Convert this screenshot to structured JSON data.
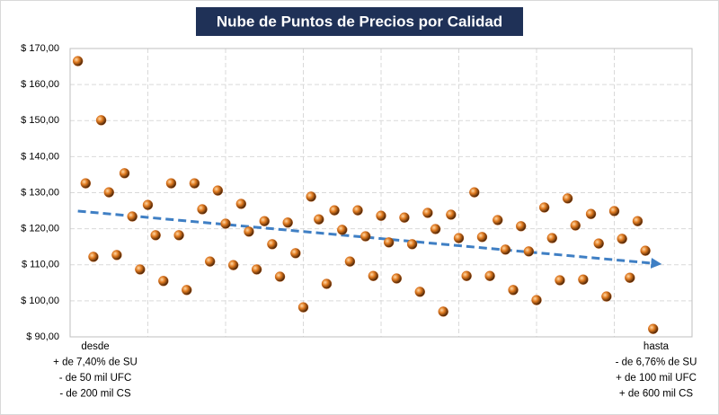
{
  "chart_data": {
    "type": "scatter",
    "title": "Nube de Puntos de Precios por Calidad",
    "x": [
      1,
      2,
      3,
      4,
      5,
      6,
      7,
      8,
      9,
      10,
      11,
      12,
      13,
      14,
      15,
      16,
      17,
      18,
      19,
      20,
      21,
      22,
      23,
      24,
      25,
      26,
      27,
      28,
      29,
      30,
      31,
      32,
      33,
      34,
      35,
      36,
      37,
      38,
      39,
      40,
      41,
      42,
      43,
      44,
      45,
      46,
      47,
      48,
      49,
      50,
      51,
      52,
      53,
      54,
      55,
      56,
      57,
      58,
      59,
      60,
      61,
      62,
      63,
      64,
      65,
      66,
      67,
      68,
      69,
      70,
      71,
      72,
      73,
      74,
      75
    ],
    "values": [
      166.5,
      132.6,
      112.2,
      150.1,
      130.1,
      112.7,
      135.4,
      123.4,
      108.7,
      126.6,
      118.2,
      105.5,
      132.6,
      118.2,
      103.0,
      132.6,
      125.4,
      110.9,
      130.6,
      121.4,
      109.9,
      126.9,
      119.2,
      108.7,
      122.1,
      115.7,
      106.7,
      121.7,
      113.2,
      98.2,
      128.9,
      122.6,
      104.7,
      125.1,
      119.7,
      110.9,
      125.1,
      117.9,
      106.9,
      123.6,
      116.2,
      106.2,
      123.1,
      115.7,
      102.5,
      124.4,
      119.9,
      97.0,
      123.9,
      117.4,
      106.9,
      130.1,
      117.7,
      106.9,
      122.4,
      114.2,
      103.0,
      120.7,
      113.7,
      100.2,
      125.9,
      117.4,
      105.7,
      128.4,
      120.9,
      105.9,
      124.1,
      115.9,
      101.2,
      124.9,
      117.2,
      106.4,
      122.1,
      113.9,
      92.2
    ],
    "color": "#d2691e",
    "trendline": {
      "x": [
        1,
        75
      ],
      "values": [
        124.9,
        110.4
      ],
      "color": "#3f7fc4"
    },
    "xlim": [
      0,
      80
    ],
    "xticks": [
      0,
      10,
      20,
      30,
      40,
      50,
      60,
      70,
      80
    ],
    "ylim": [
      90,
      170
    ],
    "yticks": [
      {
        "value": 90,
        "label": "$ 90,00"
      },
      {
        "value": 100,
        "label": "$ 100,00"
      },
      {
        "value": 110,
        "label": "$ 110,00"
      },
      {
        "value": 120,
        "label": "$ 120,00"
      },
      {
        "value": 130,
        "label": "$ 130,00"
      },
      {
        "value": 140,
        "label": "$ 140,00"
      },
      {
        "value": 150,
        "label": "$ 150,00"
      },
      {
        "value": 160,
        "label": "$ 160,00"
      },
      {
        "value": 170,
        "label": "$ 170,00"
      }
    ],
    "grid": true,
    "annotations": {
      "left": [
        "desde",
        "+ de 7,40% de SU",
        "- de 50 mil UFC",
        "- de 200 mil CS"
      ],
      "right": [
        "hasta",
        "- de 6,76% de SU",
        "+ de 100 mil UFC",
        "+ de 600 mil CS"
      ]
    }
  }
}
